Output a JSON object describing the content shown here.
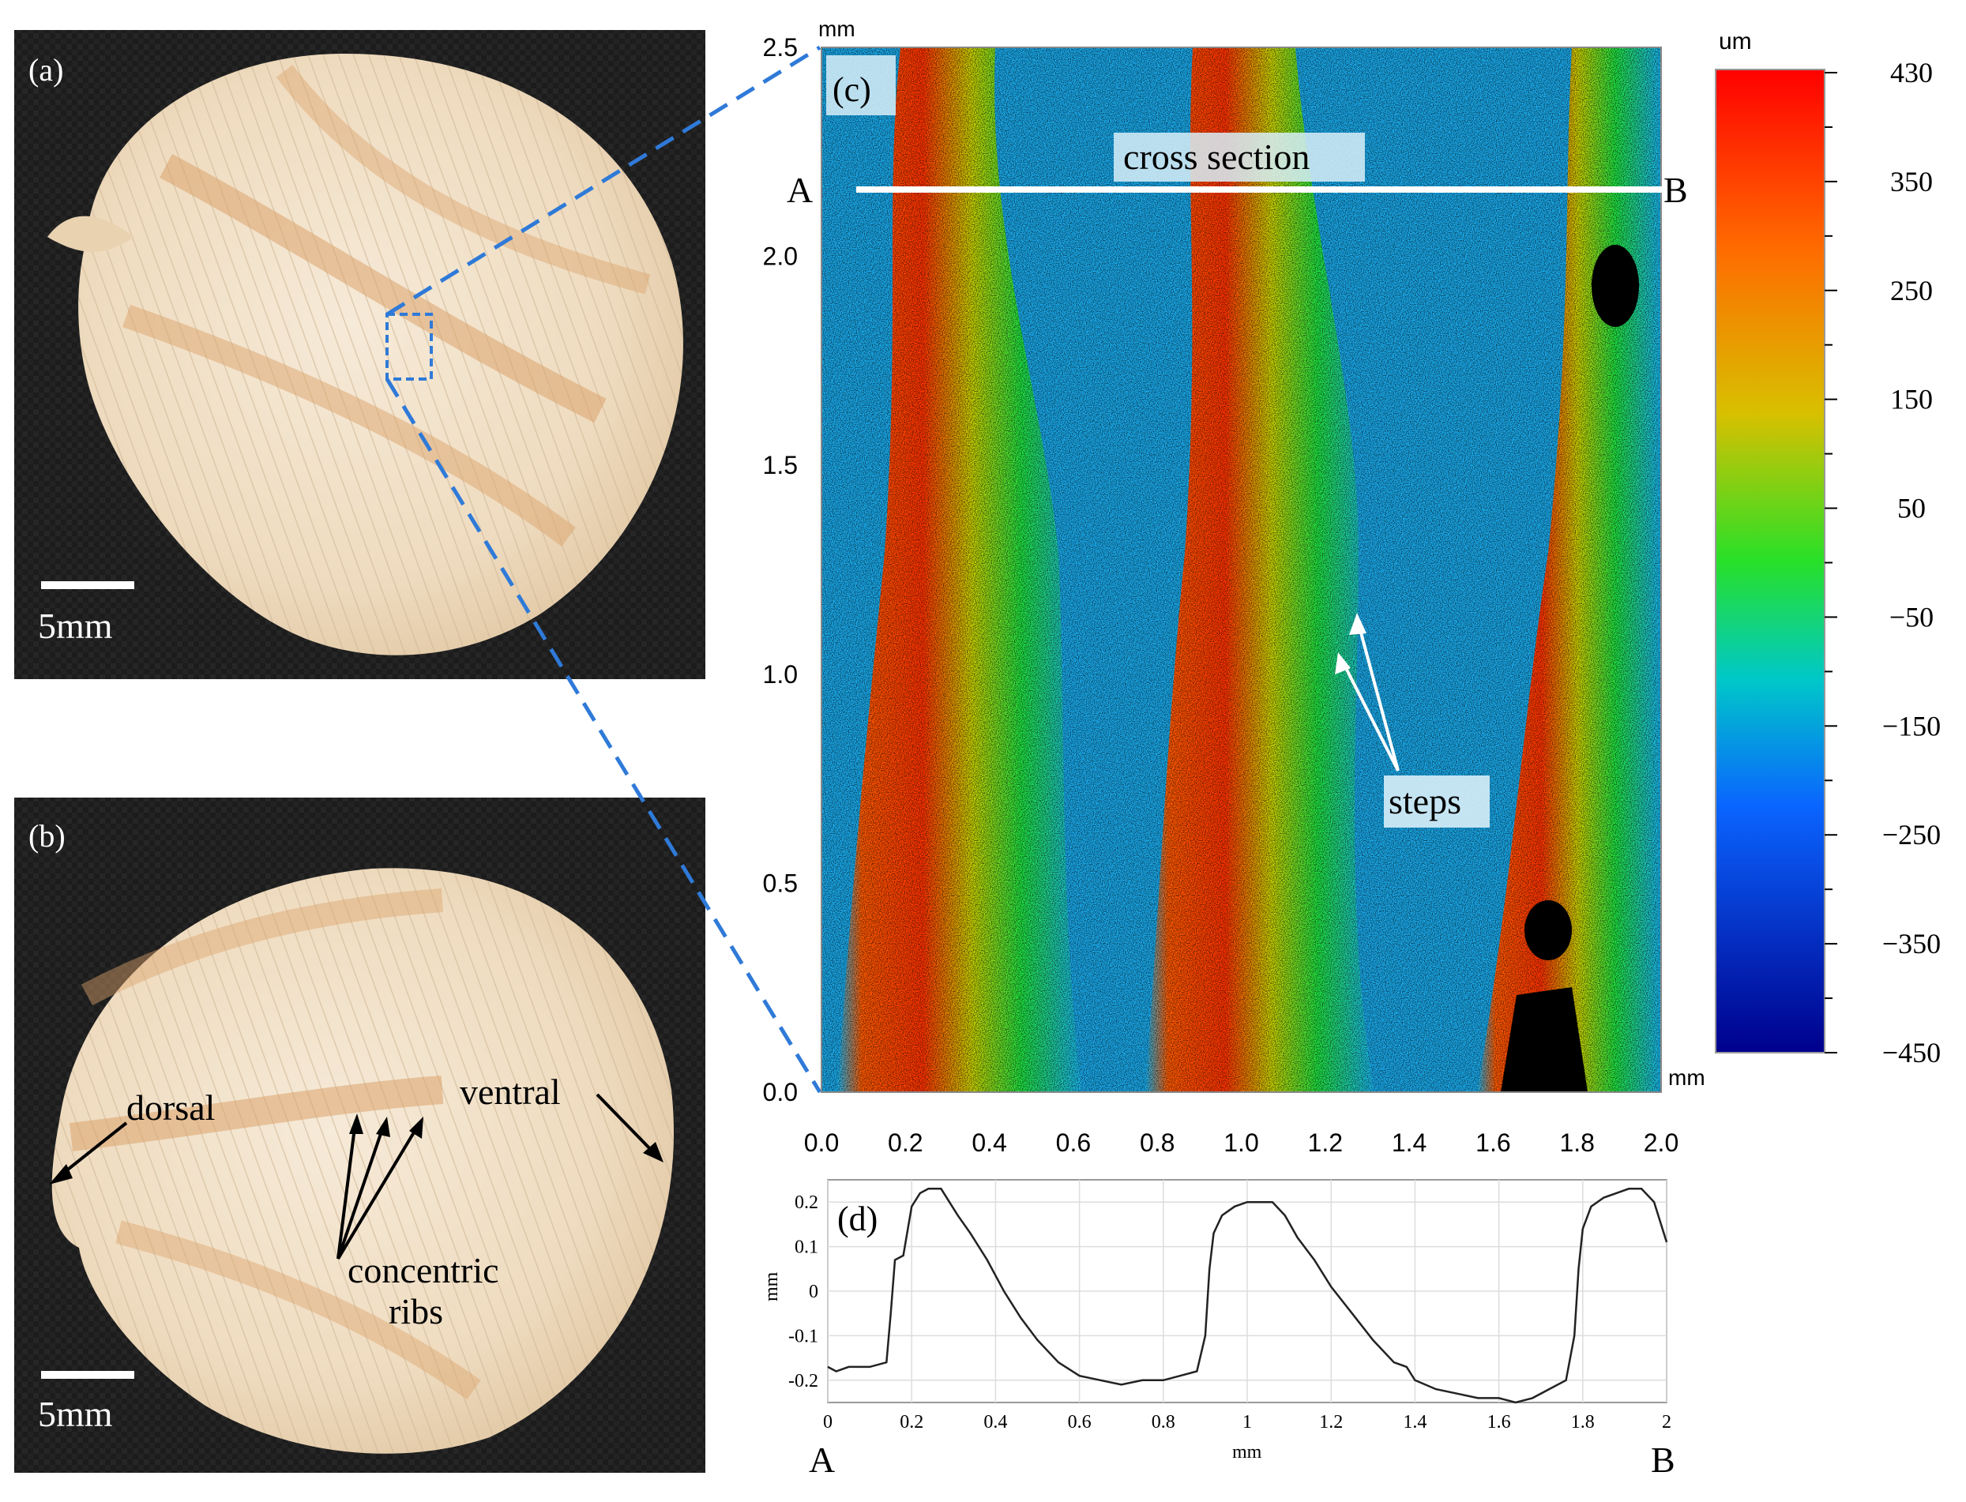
{
  "panels": {
    "a": {
      "label": "(a)",
      "scale_bar": "5mm"
    },
    "b": {
      "label": "(b)",
      "scale_bar": "5mm",
      "annotations": {
        "dorsal": "dorsal",
        "ventral": "ventral",
        "ribs_line1": "concentric",
        "ribs_line2": "ribs"
      }
    },
    "c": {
      "label": "(c)",
      "unit_top": "mm",
      "unit_right": "mm",
      "cross_section": "cross section",
      "point_a": "A",
      "point_b": "B",
      "steps": "steps",
      "colorbar": {
        "unit": "um",
        "ticks": [
          "430",
          "350",
          "250",
          "150",
          "50",
          "−50",
          "−150",
          "−250",
          "−350",
          "−450"
        ],
        "colors": [
          "#ff0000",
          "#ff6a00",
          "#d8c000",
          "#28e028",
          "#00c8c8",
          "#0a64ff",
          "#00008c"
        ]
      },
      "x_ticks": [
        "0.0",
        "0.2",
        "0.4",
        "0.6",
        "0.8",
        "1.0",
        "1.2",
        "1.4",
        "1.6",
        "1.8",
        "2.0"
      ],
      "y_ticks": [
        "0.0",
        "0.5",
        "1.0",
        "1.5",
        "2.0",
        "2.5"
      ]
    },
    "d": {
      "label": "(d)",
      "ylabel": "mm",
      "xlabel": "mm",
      "point_a": "A",
      "point_b": "B"
    }
  },
  "chart_data": {
    "type": "line",
    "title": "",
    "xlabel": "mm",
    "ylabel": "mm",
    "xlim": [
      0,
      2
    ],
    "ylim": [
      -0.25,
      0.25
    ],
    "x_ticks": [
      "0",
      "0.2",
      "0.4",
      "0.6",
      "0.8",
      "1",
      "1.2",
      "1.4",
      "1.6",
      "1.8",
      "2"
    ],
    "y_ticks": [
      "0.2",
      "0.1",
      "0",
      "-0.1",
      "-0.2"
    ],
    "grid": true,
    "series": [
      {
        "x": [
          0,
          0.02,
          0.05,
          0.1,
          0.14,
          0.15,
          0.16,
          0.18,
          0.2,
          0.22,
          0.24,
          0.27,
          0.29,
          0.31,
          0.34,
          0.38,
          0.42,
          0.46,
          0.5,
          0.55,
          0.6,
          0.65,
          0.7,
          0.75,
          0.8,
          0.84,
          0.88,
          0.9,
          0.91,
          0.92,
          0.94,
          0.97,
          1.0,
          1.03,
          1.06,
          1.09,
          1.12,
          1.16,
          1.2,
          1.25,
          1.3,
          1.35,
          1.38,
          1.4,
          1.45,
          1.5,
          1.55,
          1.6,
          1.64,
          1.68,
          1.72,
          1.76,
          1.78,
          1.79,
          1.8,
          1.82,
          1.85,
          1.88,
          1.91,
          1.94,
          1.97,
          2.0
        ],
        "y": [
          -0.17,
          -0.18,
          -0.17,
          -0.17,
          -0.16,
          -0.05,
          0.07,
          0.08,
          0.19,
          0.22,
          0.23,
          0.23,
          0.2,
          0.17,
          0.13,
          0.07,
          0.0,
          -0.06,
          -0.11,
          -0.16,
          -0.19,
          -0.2,
          -0.21,
          -0.2,
          -0.2,
          -0.19,
          -0.18,
          -0.1,
          0.05,
          0.13,
          0.17,
          0.19,
          0.2,
          0.2,
          0.2,
          0.17,
          0.12,
          0.07,
          0.01,
          -0.05,
          -0.11,
          -0.16,
          -0.17,
          -0.2,
          -0.22,
          -0.23,
          -0.24,
          -0.24,
          -0.25,
          -0.24,
          -0.22,
          -0.2,
          -0.1,
          0.05,
          0.14,
          0.19,
          0.21,
          0.22,
          0.23,
          0.23,
          0.2,
          0.11
        ]
      }
    ]
  }
}
